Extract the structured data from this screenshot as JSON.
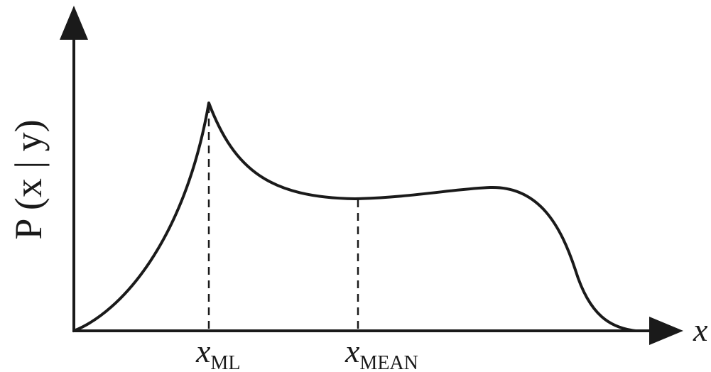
{
  "diagram": {
    "y_axis_label": "P (x | y)",
    "x_axis_label": "x",
    "markers": [
      {
        "symbol": "x",
        "subscript": "ML"
      },
      {
        "symbol": "x",
        "subscript": "MEAN"
      }
    ],
    "colors": {
      "ink": "#1a1a1a",
      "background": "#ffffff"
    }
  }
}
